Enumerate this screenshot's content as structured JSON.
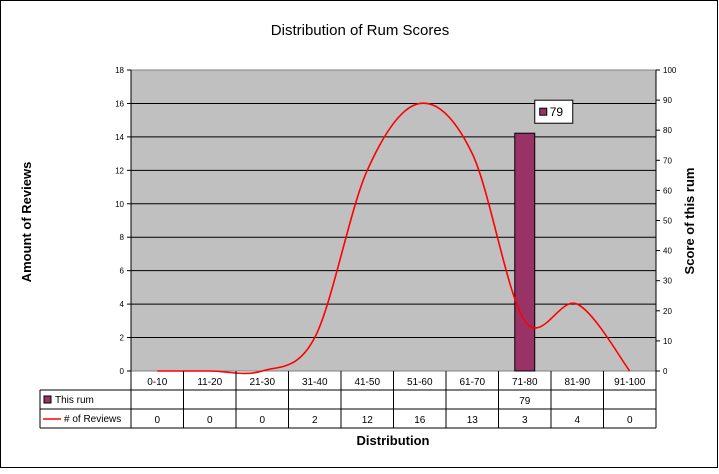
{
  "chart_data": {
    "type": "bar+line",
    "title": "Distribution of Rum Scores",
    "xlabel": "Distribution",
    "ylabel": "Amount of Reviews",
    "y2label": "Score of this rum",
    "categories": [
      "0-10",
      "11-20",
      "21-30",
      "31-40",
      "41-50",
      "51-60",
      "61-70",
      "71-80",
      "81-90",
      "91-100"
    ],
    "ylim": [
      0,
      18
    ],
    "yticks": [
      0,
      2,
      4,
      6,
      8,
      10,
      12,
      14,
      16,
      18
    ],
    "y2lim": [
      0,
      100
    ],
    "y2ticks": [
      0,
      10,
      20,
      30,
      40,
      50,
      60,
      70,
      80,
      90,
      100
    ],
    "grid": true,
    "series": [
      {
        "name": "This rum",
        "type": "bar",
        "axis": "secondary",
        "color": "#993366",
        "values": [
          null,
          null,
          null,
          null,
          null,
          null,
          null,
          79,
          null,
          null
        ],
        "table_values": [
          "",
          "",
          "",
          "",
          "",
          "",
          "",
          "79",
          "",
          ""
        ]
      },
      {
        "name": "# of Reviews",
        "type": "line",
        "axis": "primary",
        "color": "#ff0000",
        "values": [
          0,
          0,
          0,
          2,
          12,
          16,
          13,
          3,
          4,
          0
        ],
        "table_values": [
          "0",
          "0",
          "0",
          "2",
          "12",
          "16",
          "13",
          "3",
          "4",
          "0"
        ]
      }
    ],
    "annotation": {
      "text": "79",
      "category": "71-80"
    }
  }
}
